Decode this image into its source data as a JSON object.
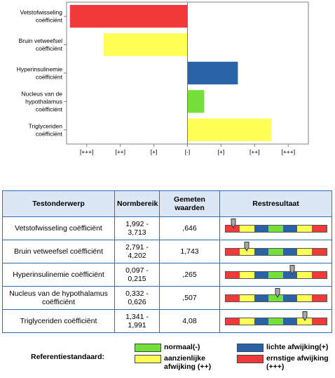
{
  "colors": {
    "red": "#f03a3a",
    "yellow": "#ffff55",
    "green": "#73e03a",
    "blue": "#2a62a8",
    "header_bg": "#dbe7f5",
    "border_blue": "#2f6fb0"
  },
  "chart_data": {
    "type": "bar",
    "orientation": "horizontal",
    "categories": [
      "Vetstofwisseling coëfficiënt",
      "Bruin vetweefsel coëfficiënt",
      "Hyperinsulinemie coëfficiënt",
      "Nucleus van de hypothalamus coëfficiënt",
      "Triglyceriden coëfficiënt"
    ],
    "category_lines": [
      [
        "Vetstofwisseling",
        "coëfficiënt"
      ],
      [
        "Bruin vetweefsel",
        "coëfficiënt"
      ],
      [
        "Hyperinsulinemie",
        "coëfficiënt"
      ],
      [
        "Nucleus van de",
        "hypothalamus",
        "coëfficiënt"
      ],
      [
        "Triglyceriden",
        "coëfficiënt"
      ]
    ],
    "values": [
      -3.5,
      -2.5,
      1.5,
      0.5,
      2.5
    ],
    "bar_colors": [
      "#f03a3a",
      "#ffff55",
      "#2a62a8",
      "#73e03a",
      "#ffff55"
    ],
    "x_tick_labels": [
      "[+++]",
      "[++]",
      "[+]",
      "[-]",
      "[+]",
      "[++]",
      "[+++]"
    ],
    "x_tick_values": [
      -3,
      -2,
      -1,
      0,
      1,
      2,
      3
    ],
    "xlim": [
      -3.6,
      3.6
    ],
    "grid": false,
    "title": "",
    "xlabel": "",
    "ylabel": ""
  },
  "table": {
    "headers": {
      "subject": "Testonderwerp",
      "range": "Normbereik",
      "measured": "Gemeten waarden",
      "result": "Restresultaat"
    },
    "rows": [
      {
        "subject": "Vetstofwisseling coëfficiënt",
        "range": "1,992 - 3,713",
        "value": ",646",
        "marker": 0.08
      },
      {
        "subject": "Bruin vetweefsel coëfficiënt",
        "range": "2,791 - 4,202",
        "value": "1,743",
        "marker": 0.21
      },
      {
        "subject": "Hyperinsulinemie coëfficiënt",
        "range": "0,097 - 0,215",
        "value": ",265",
        "marker": 0.66
      },
      {
        "subject": "Nucleus van de hypothalamus coëfficiënt",
        "range": "0,332 - 0,626",
        "value": ",507",
        "marker": 0.52
      },
      {
        "subject": "Triglyceriden coëfficiënt",
        "range": "1,341 - 1,991",
        "value": "4,08",
        "marker": 0.79
      }
    ],
    "scale_segments": [
      "#f03a3a",
      "#ffff55",
      "#2a62a8",
      "#73e03a",
      "#2a62a8",
      "#ffff55",
      "#f03a3a"
    ]
  },
  "legend": {
    "title": "Referentiestandaard:",
    "items": [
      {
        "label": "normaal(-)",
        "color": "#73e03a"
      },
      {
        "label": "lichte afwijking(+)",
        "color": "#2a62a8"
      },
      {
        "label": "aanzienlijke afwijking (++)",
        "color": "#ffff55"
      },
      {
        "label": "ernstige afwijking (+++)",
        "color": "#f03a3a"
      }
    ]
  }
}
